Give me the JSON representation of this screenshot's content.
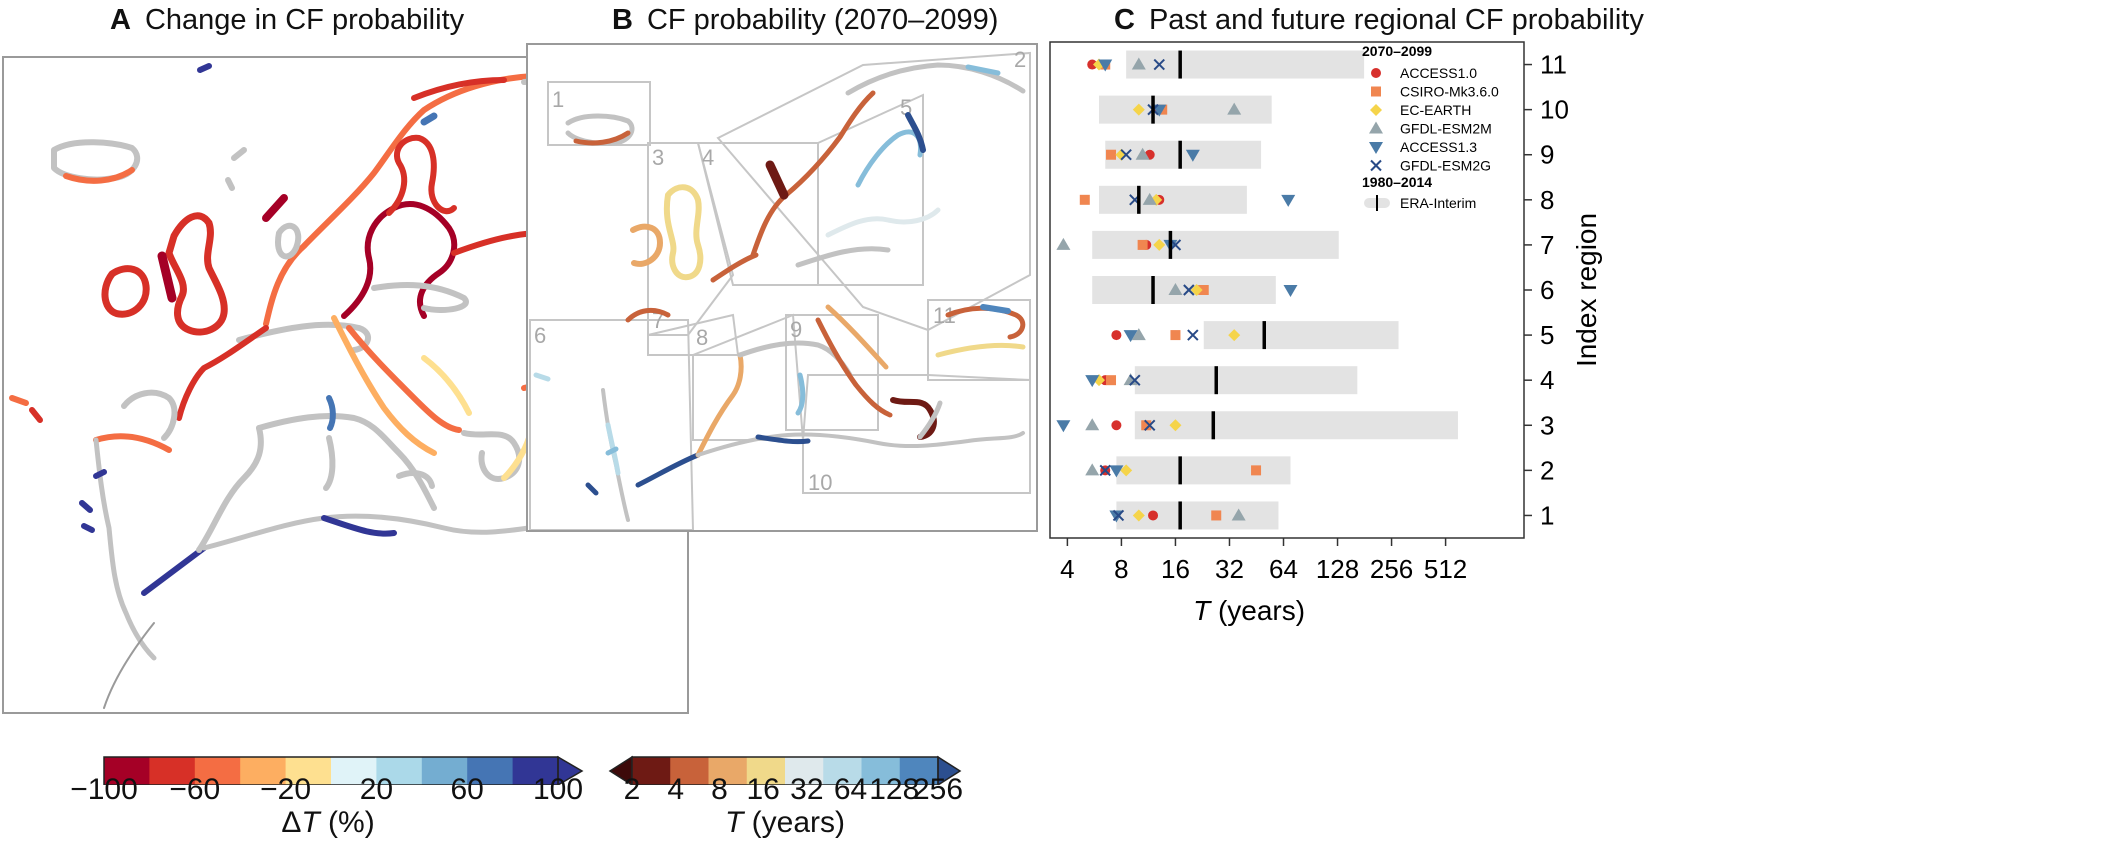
{
  "panels": {
    "a": {
      "letter": "A",
      "title": "Change in CF probability"
    },
    "b": {
      "letter": "B",
      "title": "CF probability (2070–2099)"
    },
    "c": {
      "letter": "C",
      "title": "Past and future regional CF probability"
    }
  },
  "colorbar_a": {
    "ticks": [
      "−100",
      "−60",
      "−20",
      "20",
      "60",
      "100"
    ],
    "label_symbol": "Δ",
    "label_var": "T",
    "label_unit": "(%)",
    "colors": [
      "#a50026",
      "#d73027",
      "#f46d43",
      "#fdae61",
      "#fee090",
      "#e0f3f8",
      "#abd9e9",
      "#74add1",
      "#4575b4",
      "#313695"
    ]
  },
  "colorbar_b": {
    "ticks": [
      "2",
      "4",
      "8",
      "16",
      "32",
      "64",
      "128",
      "256"
    ],
    "label_var": "T",
    "label_unit": "(years)",
    "colors": [
      "#3d0a0a",
      "#6e1a14",
      "#c8623a",
      "#e9a868",
      "#f0d98a",
      "#dfe9ec",
      "#b8dbe8",
      "#86bdda",
      "#4f86bd",
      "#2c4f8f"
    ]
  },
  "region_labels": [
    "1",
    "2",
    "3",
    "4",
    "5",
    "6",
    "7",
    "8",
    "9",
    "10",
    "11"
  ],
  "chart_data": {
    "type": "scatter",
    "title": "Past and future regional CF probability",
    "xlabel_var": "T",
    "xlabel_unit": "(years)",
    "ylabel": "Index region",
    "x_scale": "log2",
    "xlim": [
      3.2,
      1400
    ],
    "x_ticks": [
      4,
      8,
      16,
      32,
      64,
      128,
      256,
      512
    ],
    "x_tick_labels": [
      "4",
      "8",
      "16",
      "32",
      "64",
      "128",
      "256",
      "512"
    ],
    "y_ticks": [
      1,
      2,
      3,
      4,
      5,
      6,
      7,
      8,
      9,
      10,
      11
    ],
    "y_tick_labels": [
      "1",
      "2",
      "3",
      "4",
      "5",
      "6",
      "7",
      "8",
      "9",
      "10",
      "11"
    ],
    "legend": {
      "position": "top-right",
      "future_header": "2070–2099",
      "past_header": "1980–2014"
    },
    "models": [
      {
        "name": "ACCESS1.0",
        "marker": "circle",
        "color": "#d7302c",
        "values": [
          12,
          6.5,
          7.5,
          6.5,
          7.5,
          22,
          11,
          13,
          11.5,
          13,
          5.5
        ]
      },
      {
        "name": "CSIRO-Mk3.6.0",
        "marker": "square",
        "color": "#f08650",
        "values": [
          27,
          45,
          11,
          7,
          16,
          23,
          10.5,
          5,
          7,
          13.5,
          6.5
        ]
      },
      {
        "name": "EC-EARTH",
        "marker": "diamond",
        "color": "#f5d44a",
        "values": [
          10,
          8.5,
          16,
          6,
          34,
          21,
          13,
          12.5,
          8,
          10,
          6
        ]
      },
      {
        "name": "GFDL-ESM2M",
        "marker": "triangle-up",
        "color": "#95a5ab",
        "values": [
          36,
          5.5,
          5.5,
          9,
          10,
          16,
          3.8,
          11.5,
          10.5,
          34,
          10
        ]
      },
      {
        "name": "ACCESS1.3",
        "marker": "triangle-down",
        "color": "#4a7ba7",
        "values": [
          7.5,
          7.5,
          3.8,
          5.5,
          9,
          70,
          15,
          68,
          20,
          13,
          6.5
        ]
      },
      {
        "name": "GFDL-ESM2G",
        "marker": "x",
        "color": "#284a87",
        "values": [
          7.7,
          6.5,
          11.5,
          9.5,
          20,
          19,
          16,
          9.5,
          8.5,
          12,
          13
        ]
      }
    ],
    "reference": {
      "name": "ERA-Interim",
      "median": [
        17,
        17,
        26,
        27,
        50,
        12,
        15,
        10,
        17,
        12,
        17
      ],
      "range_low": [
        7.5,
        7.5,
        9.5,
        9.5,
        23,
        5.5,
        5.5,
        6,
        6.5,
        6,
        8.5
      ],
      "range_high": [
        60,
        70,
        600,
        165,
        280,
        58,
        130,
        40,
        48,
        55,
        180
      ]
    }
  }
}
